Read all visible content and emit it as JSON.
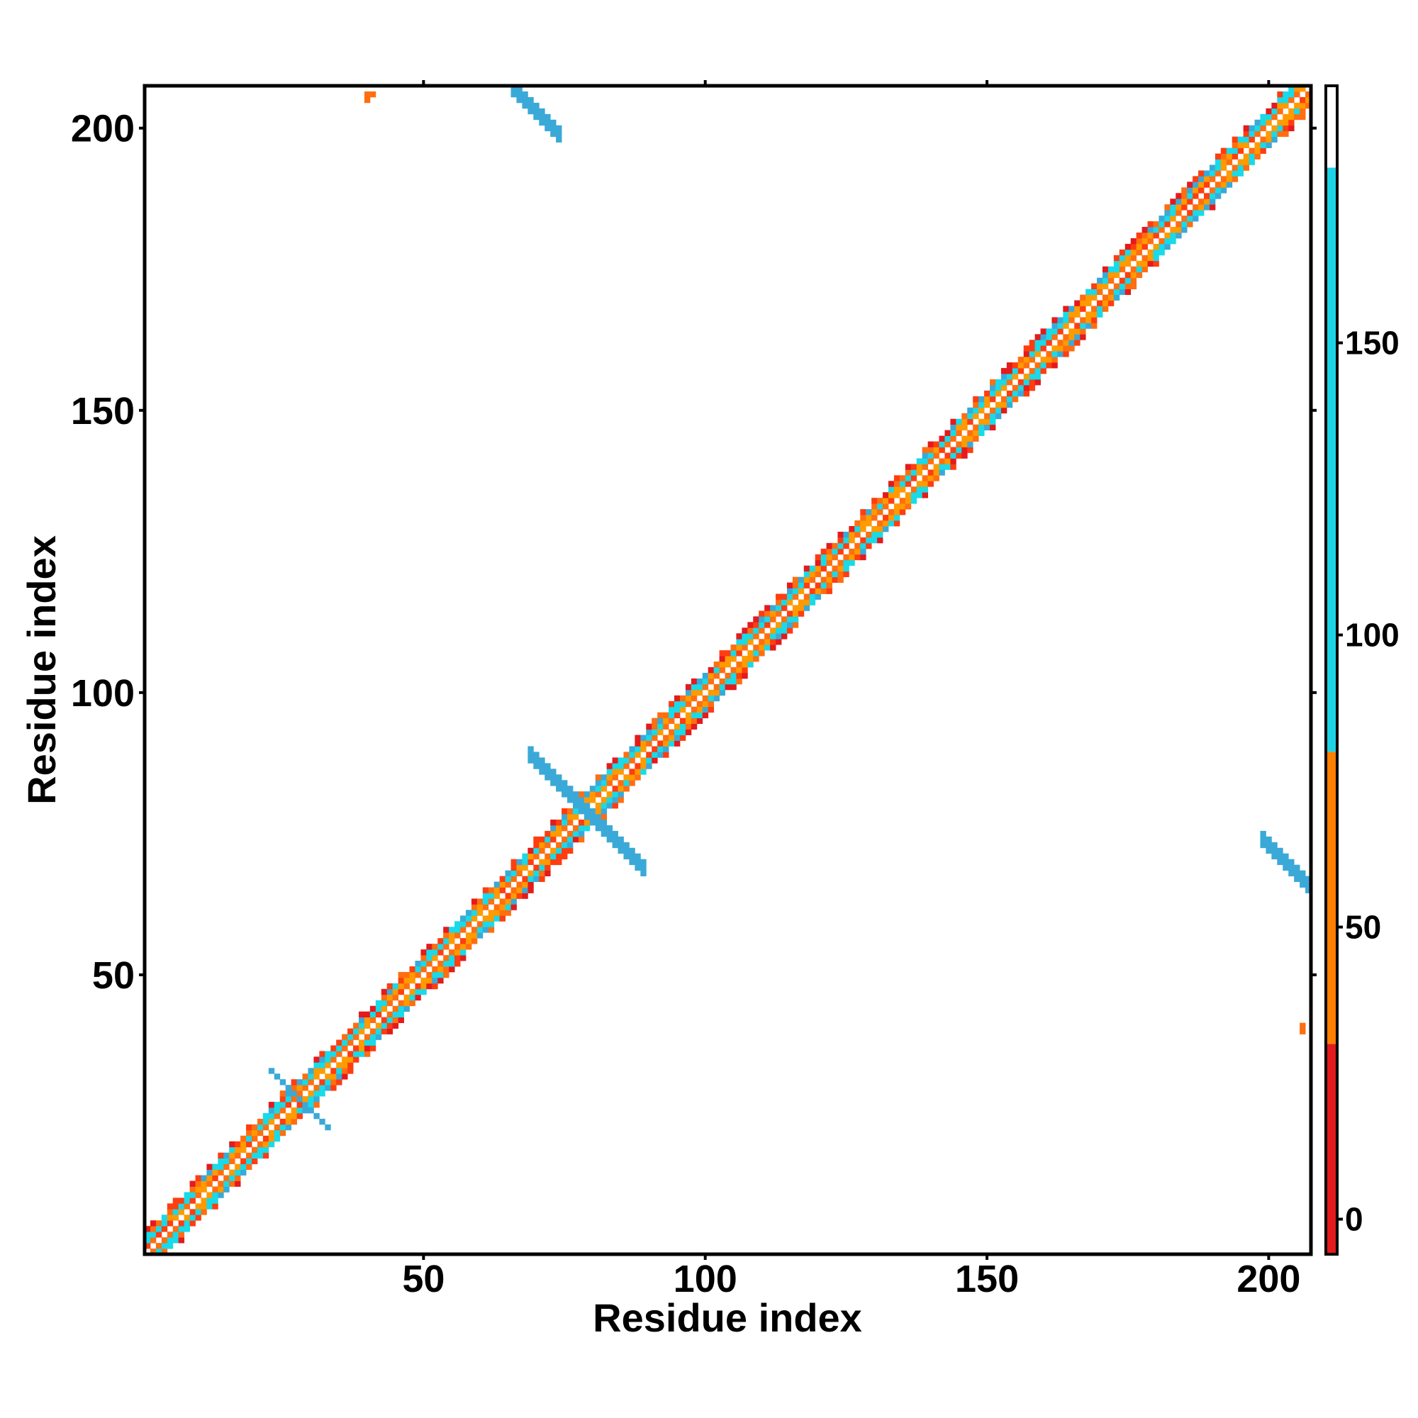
{
  "chart_data": {
    "type": "heatmap",
    "title": "",
    "xlabel": "Residue index",
    "ylabel": "Residue index",
    "xlim": [
      0.5,
      207.5
    ],
    "ylim": [
      0.5,
      207.5
    ],
    "x_ticks": [
      50,
      100,
      150,
      200
    ],
    "y_ticks": [
      50,
      100,
      150,
      200
    ],
    "colorbar": {
      "ticks": [
        0,
        50,
        100,
        150
      ],
      "range": [
        -6,
        194
      ],
      "bands": [
        {
          "from": -6,
          "to": 30,
          "color": "#e41a1c"
        },
        {
          "from": 30,
          "to": 80,
          "color": "#ff7f00"
        },
        {
          "from": 80,
          "to": 180,
          "color": "#1ed2e6"
        },
        {
          "from": 180,
          "to": 194,
          "color": "#ffffff"
        }
      ]
    },
    "pattern": {
      "diagonal": "residues 1-207, values near 0-180 in a band of half-width ~3 residues",
      "cross_contacts": [
        {
          "x": [
            69,
            89
          ],
          "y": [
            89,
            69
          ],
          "value": 150
        },
        {
          "x": [
            23,
            33
          ],
          "y": [
            33,
            23
          ],
          "value": 150
        },
        {
          "x": [
            66,
            74
          ],
          "y": [
            207,
            200
          ],
          "value": 150
        },
        {
          "x": [
            200,
            207
          ],
          "y": [
            74,
            66
          ],
          "value": 150
        },
        {
          "x": [
            40,
            42
          ],
          "y": [
            205,
            207
          ],
          "value": 40
        },
        {
          "x": [
            205,
            207
          ],
          "y": [
            40,
            42
          ],
          "value": 40
        }
      ]
    }
  }
}
